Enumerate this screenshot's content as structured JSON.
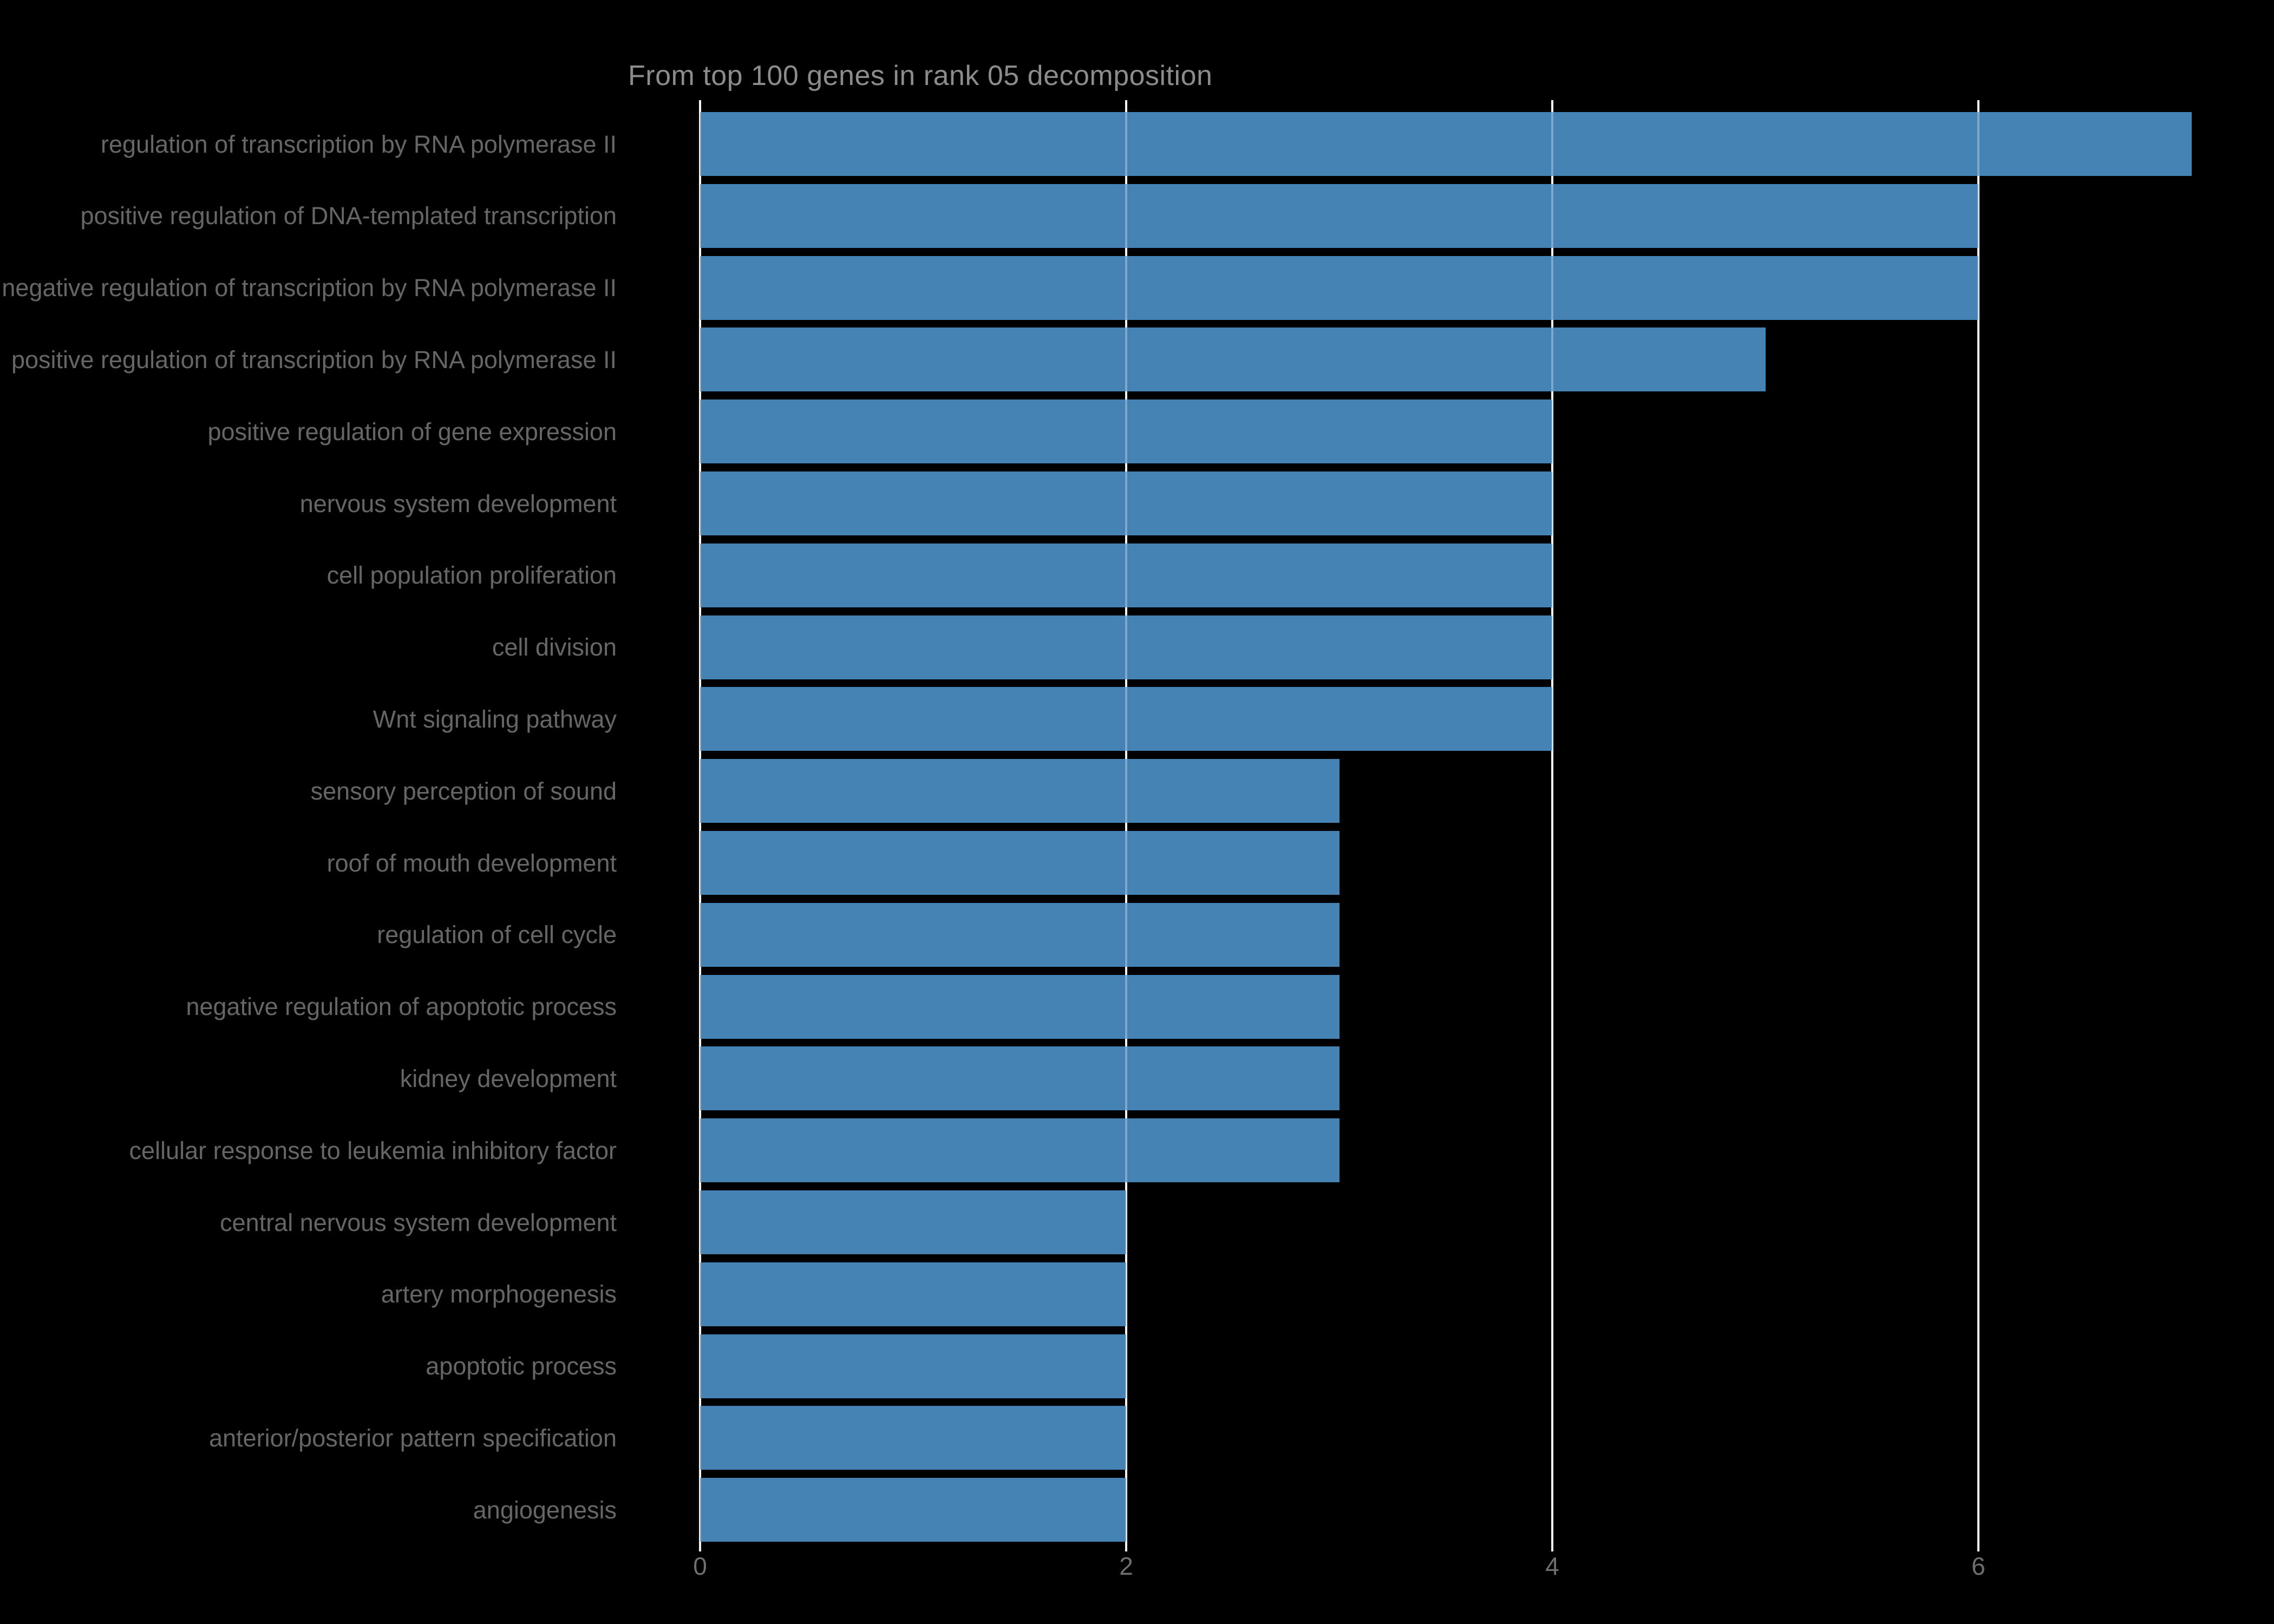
{
  "chart_data": {
    "type": "bar",
    "orientation": "horizontal",
    "title": "From top 100 genes in rank 05 decomposition",
    "categories": [
      "regulation of transcription by RNA polymerase II",
      "positive regulation of DNA-templated transcription",
      "negative regulation of transcription by RNA polymerase II",
      "positive regulation of transcription by RNA polymerase II",
      "positive regulation of gene expression",
      "nervous system development",
      "cell population proliferation",
      "cell division",
      "Wnt signaling pathway",
      "sensory perception of sound",
      "roof of mouth development",
      "regulation of cell cycle",
      "negative regulation of apoptotic process",
      "kidney development",
      "cellular response to leukemia inhibitory factor",
      "central nervous system development",
      "artery morphogenesis",
      "apoptotic process",
      "anterior/posterior pattern specification",
      "angiogenesis"
    ],
    "values": [
      7,
      6,
      6,
      5,
      4,
      4,
      4,
      4,
      4,
      3,
      3,
      3,
      3,
      3,
      3,
      2,
      2,
      2,
      2,
      2
    ],
    "xlabel": "",
    "ylabel": "",
    "xticks": [
      0,
      2,
      4,
      6
    ],
    "xlim": [
      0,
      7.2
    ],
    "grid": true,
    "legend": false,
    "colors": {
      "background": "#000000",
      "bar": "#4683b5",
      "gridline": "#f0f0f0",
      "title_text": "#8c8c8c",
      "category_text": "#666666",
      "tick_text": "#6f6f6f"
    }
  }
}
